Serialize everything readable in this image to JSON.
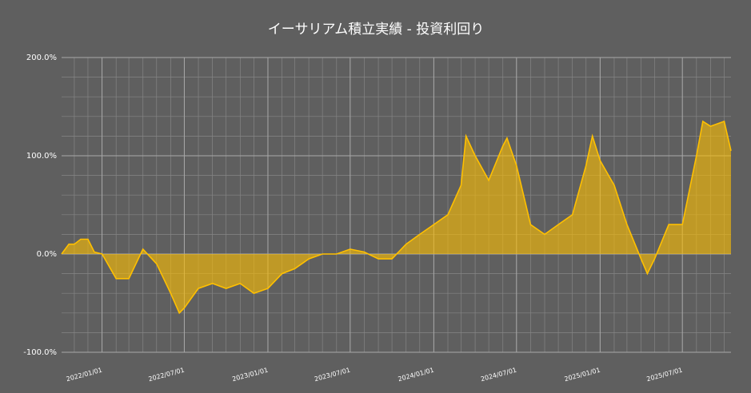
{
  "chart_data": {
    "type": "area",
    "title": "イーサリアム積立実績 - 投資利回り",
    "x": [
      "2021/10/04",
      "2021/10/20",
      "2021/11/01",
      "2021/11/15",
      "2021/12/01",
      "2021/12/15",
      "2022/01/01",
      "2022/02/01",
      "2022/03/01",
      "2022/04/01",
      "2022/05/01",
      "2022/06/01",
      "2022/06/20",
      "2022/07/01",
      "2022/08/01",
      "2022/09/01",
      "2022/10/01",
      "2022/11/01",
      "2022/12/01",
      "2023/01/01",
      "2023/02/01",
      "2023/03/01",
      "2023/04/01",
      "2023/05/01",
      "2023/06/01",
      "2023/07/01",
      "2023/08/01",
      "2023/09/01",
      "2023/10/01",
      "2023/11/01",
      "2023/12/01",
      "2024/01/01",
      "2024/02/01",
      "2024/03/01",
      "2024/03/12",
      "2024/04/01",
      "2024/05/01",
      "2024/06/01",
      "2024/06/10",
      "2024/07/01",
      "2024/08/01",
      "2024/09/01",
      "2024/10/01",
      "2024/11/01",
      "2024/12/01",
      "2024/12/15",
      "2025/01/01",
      "2025/02/01",
      "2025/03/01",
      "2025/04/01",
      "2025/04/15",
      "2025/05/01",
      "2025/06/01",
      "2025/07/01",
      "2025/08/01",
      "2025/08/15",
      "2025/09/01",
      "2025/10/01",
      "2025/10/16"
    ],
    "series": [
      {
        "name": "投資利回り",
        "color": "#ffc000",
        "values": [
          0,
          10,
          10,
          15,
          15,
          2,
          0,
          -25,
          -25,
          5,
          -10,
          -40,
          -60,
          -55,
          -35,
          -30,
          -35,
          -30,
          -40,
          -35,
          -20,
          -15,
          -5,
          0,
          0,
          5,
          2,
          -5,
          -5,
          10,
          20,
          30,
          40,
          70,
          120,
          100,
          75,
          110,
          118,
          90,
          30,
          20,
          30,
          40,
          90,
          120,
          95,
          70,
          30,
          -5,
          -20,
          -5,
          30,
          30,
          100,
          135,
          130,
          135,
          105
        ]
      }
    ],
    "xlim": [
      "2021/10/04",
      "2025/10/16"
    ],
    "xticks": [
      "2022/01/01",
      "2022/07/01",
      "2023/01/01",
      "2023/07/01",
      "2024/01/01",
      "2024/07/01",
      "2025/01/01",
      "2025/07/01"
    ],
    "ylim": [
      -100,
      200
    ],
    "yticks": [
      {
        "value": -100,
        "label": "-100.0%"
      },
      {
        "value": 0,
        "label": "0.0%"
      },
      {
        "value": 100,
        "label": "100.0%"
      },
      {
        "value": 200,
        "label": "200.0%"
      }
    ],
    "grid": true
  }
}
